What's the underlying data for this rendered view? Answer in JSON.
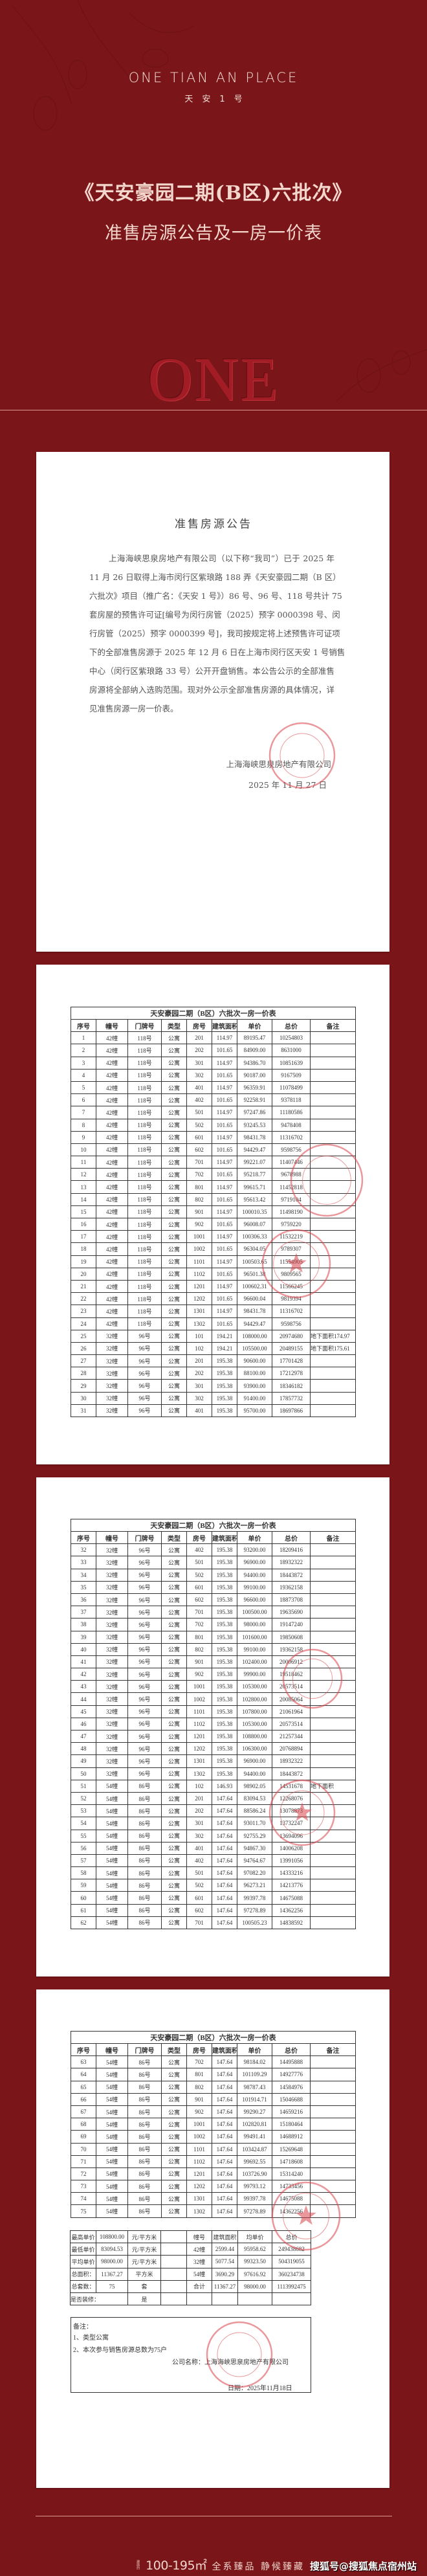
{
  "colors": {
    "background": "#7a1519",
    "heading_text": "#f3d6cc",
    "seal": "#d9434a"
  },
  "header": {
    "brand_en": "ONE TIAN AN PLACE",
    "brand_cn": "天安1号",
    "title_line1": "《天安豪园二期(B区)六批次》",
    "title_line2": "准售房源公告及一房一价表",
    "logo_text": "ONE"
  },
  "announcement": {
    "title": "准售房源公告",
    "lines": [
      "上海海峡思泉房地产有限公司（以下称“我司”）已于 2025 年",
      "11 月 26 日取得上海市闵行区紫琅路 188 弄《天安豪园二期（B 区）",
      "六批次》项目（推广名：《天安 1 号》）86 号、96 号、118 号共计 75",
      "套房屋的预售许可证[编号为闵行房管（2025）预字 0000398 号、闵",
      "行房管（2025）预字 0000399 号]，我司按规定将上述预售许可证项",
      "下的全部准售房源于 2025 年 12 月 6 日在上海市闵行区天安 1 号销售",
      "中心（闵行区紫琅路 33 号）公开开盘销售。本公告公示的全部准售",
      "房源将全部纳入选购范围。现对外公示全部准售房源的具体情况，详",
      "见准售房源一房一价表。"
    ],
    "company": "上海海峡思泉房地产有限公司",
    "date": "2025 年 11 月 27 日"
  },
  "price_table": {
    "title": "天安豪园二期（B区）六批次一房一价表",
    "headers": [
      "序号",
      "幢号",
      "门牌号",
      "类型",
      "房号",
      "建筑面积",
      "单价",
      "总价",
      "备注"
    ],
    "pages": [
      [
        [
          "1",
          "42幢",
          "118号",
          "公寓",
          "201",
          "114.97",
          "89195.47",
          "10254803",
          ""
        ],
        [
          "2",
          "42幢",
          "118号",
          "公寓",
          "202",
          "101.65",
          "84909.00",
          "8631000",
          ""
        ],
        [
          "3",
          "42幢",
          "118号",
          "公寓",
          "301",
          "114.97",
          "94386.70",
          "10851639",
          ""
        ],
        [
          "4",
          "42幢",
          "118号",
          "公寓",
          "302",
          "101.65",
          "90187.00",
          "9167509",
          ""
        ],
        [
          "5",
          "42幢",
          "118号",
          "公寓",
          "401",
          "114.97",
          "96359.91",
          "11078499",
          ""
        ],
        [
          "6",
          "42幢",
          "118号",
          "公寓",
          "402",
          "101.65",
          "92258.91",
          "9378118",
          ""
        ],
        [
          "7",
          "42幢",
          "118号",
          "公寓",
          "501",
          "114.97",
          "97247.86",
          "11180586",
          ""
        ],
        [
          "8",
          "42幢",
          "118号",
          "公寓",
          "502",
          "101.65",
          "93245.53",
          "9478408",
          ""
        ],
        [
          "9",
          "42幢",
          "118号",
          "公寓",
          "601",
          "114.97",
          "98431.78",
          "11316702",
          ""
        ],
        [
          "10",
          "42幢",
          "118号",
          "公寓",
          "602",
          "101.65",
          "94429.47",
          "9598756",
          ""
        ],
        [
          "11",
          "42幢",
          "118号",
          "公寓",
          "701",
          "114.97",
          "99221.07",
          "11407446",
          ""
        ],
        [
          "12",
          "42幢",
          "118号",
          "公寓",
          "702",
          "101.65",
          "95218.77",
          "9678988",
          ""
        ],
        [
          "13",
          "42幢",
          "118号",
          "公寓",
          "801",
          "114.97",
          "99615.71",
          "11452818",
          ""
        ],
        [
          "14",
          "42幢",
          "118号",
          "公寓",
          "802",
          "101.65",
          "95613.42",
          "9719104",
          ""
        ],
        [
          "15",
          "42幢",
          "118号",
          "公寓",
          "901",
          "114.97",
          "100010.35",
          "11498190",
          ""
        ],
        [
          "16",
          "42幢",
          "118号",
          "公寓",
          "902",
          "101.65",
          "96008.07",
          "9759220",
          ""
        ],
        [
          "17",
          "42幢",
          "118号",
          "公寓",
          "1001",
          "114.97",
          "100306.33",
          "11532219",
          ""
        ],
        [
          "18",
          "42幢",
          "118号",
          "公寓",
          "1002",
          "101.65",
          "96304.05",
          "9789307",
          ""
        ],
        [
          "19",
          "42幢",
          "118号",
          "公寓",
          "1101",
          "114.97",
          "100503.65",
          "11554905",
          ""
        ],
        [
          "20",
          "42幢",
          "118号",
          "公寓",
          "1102",
          "101.65",
          "96501.38",
          "9809565",
          ""
        ],
        [
          "21",
          "42幢",
          "118号",
          "公寓",
          "1201",
          "114.97",
          "100602.31",
          "11566245",
          ""
        ],
        [
          "22",
          "42幢",
          "118号",
          "公寓",
          "1202",
          "101.65",
          "96600.04",
          "9819394",
          ""
        ],
        [
          "23",
          "42幢",
          "118号",
          "公寓",
          "1301",
          "114.97",
          "98431.78",
          "11316702",
          ""
        ],
        [
          "24",
          "42幢",
          "118号",
          "公寓",
          "1302",
          "101.65",
          "94429.47",
          "9598756",
          ""
        ],
        [
          "25",
          "32幢",
          "96号",
          "公寓",
          "101",
          "194.21",
          "108000.00",
          "20974680",
          "地下面积174.97"
        ],
        [
          "26",
          "32幢",
          "96号",
          "公寓",
          "102",
          "194.21",
          "105500.00",
          "20489155",
          "地下面积175.61"
        ],
        [
          "27",
          "32幢",
          "96号",
          "公寓",
          "201",
          "195.38",
          "90600.00",
          "17701428",
          ""
        ],
        [
          "28",
          "32幢",
          "96号",
          "公寓",
          "202",
          "195.38",
          "88100.00",
          "17212978",
          ""
        ],
        [
          "29",
          "32幢",
          "96号",
          "公寓",
          "301",
          "195.38",
          "93900.00",
          "18346182",
          ""
        ],
        [
          "30",
          "32幢",
          "96号",
          "公寓",
          "302",
          "195.38",
          "91400.00",
          "17857732",
          ""
        ],
        [
          "31",
          "32幢",
          "96号",
          "公寓",
          "401",
          "195.38",
          "95700.00",
          "18697866",
          ""
        ]
      ],
      [
        [
          "32",
          "32幢",
          "96号",
          "公寓",
          "402",
          "195.38",
          "93200.00",
          "18209416",
          ""
        ],
        [
          "33",
          "32幢",
          "96号",
          "公寓",
          "501",
          "195.38",
          "96900.00",
          "18932322",
          ""
        ],
        [
          "34",
          "32幢",
          "96号",
          "公寓",
          "502",
          "195.38",
          "94400.00",
          "18443872",
          ""
        ],
        [
          "35",
          "32幢",
          "96号",
          "公寓",
          "601",
          "195.38",
          "99100.00",
          "19362158",
          ""
        ],
        [
          "36",
          "32幢",
          "96号",
          "公寓",
          "602",
          "195.38",
          "96600.00",
          "18873708",
          ""
        ],
        [
          "37",
          "32幢",
          "96号",
          "公寓",
          "701",
          "195.38",
          "100500.00",
          "19635690",
          ""
        ],
        [
          "38",
          "32幢",
          "96号",
          "公寓",
          "702",
          "195.38",
          "98000.00",
          "19147240",
          ""
        ],
        [
          "39",
          "32幢",
          "96号",
          "公寓",
          "801",
          "195.38",
          "101600.00",
          "19850608",
          ""
        ],
        [
          "40",
          "32幢",
          "96号",
          "公寓",
          "802",
          "195.38",
          "99100.00",
          "19362158",
          ""
        ],
        [
          "41",
          "32幢",
          "96号",
          "公寓",
          "901",
          "195.38",
          "102400.00",
          "20006912",
          ""
        ],
        [
          "42",
          "32幢",
          "96号",
          "公寓",
          "902",
          "195.38",
          "99900.00",
          "19518462",
          ""
        ],
        [
          "43",
          "32幢",
          "96号",
          "公寓",
          "1001",
          "195.38",
          "105300.00",
          "20573514",
          ""
        ],
        [
          "44",
          "32幢",
          "96号",
          "公寓",
          "1002",
          "195.38",
          "102800.00",
          "20085064",
          ""
        ],
        [
          "45",
          "32幢",
          "96号",
          "公寓",
          "1101",
          "195.38",
          "107800.00",
          "21061964",
          ""
        ],
        [
          "46",
          "32幢",
          "96号",
          "公寓",
          "1102",
          "195.38",
          "105300.00",
          "20573514",
          ""
        ],
        [
          "47",
          "32幢",
          "96号",
          "公寓",
          "1201",
          "195.38",
          "108800.00",
          "21257344",
          ""
        ],
        [
          "48",
          "32幢",
          "96号",
          "公寓",
          "1202",
          "195.38",
          "106300.00",
          "20768894",
          ""
        ],
        [
          "49",
          "32幢",
          "96号",
          "公寓",
          "1301",
          "195.38",
          "96900.00",
          "18932322",
          ""
        ],
        [
          "50",
          "32幢",
          "96号",
          "公寓",
          "1302",
          "195.38",
          "94400.00",
          "18443872",
          ""
        ],
        [
          "51",
          "54幢",
          "86号",
          "公寓",
          "102",
          "146.93",
          "98902.05",
          "14531678",
          "地下面积"
        ],
        [
          "52",
          "54幢",
          "86号",
          "公寓",
          "201",
          "147.64",
          "83094.53",
          "12268076",
          ""
        ],
        [
          "53",
          "54幢",
          "86号",
          "公寓",
          "202",
          "147.64",
          "88586.24",
          "13078873",
          ""
        ],
        [
          "54",
          "54幢",
          "86号",
          "公寓",
          "301",
          "147.64",
          "93011.70",
          "13732247",
          ""
        ],
        [
          "55",
          "54幢",
          "86号",
          "公寓",
          "302",
          "147.64",
          "92755.29",
          "13694096",
          ""
        ],
        [
          "56",
          "54幢",
          "86号",
          "公寓",
          "401",
          "147.64",
          "94867.30",
          "14006208",
          ""
        ],
        [
          "57",
          "54幢",
          "86号",
          "公寓",
          "402",
          "147.64",
          "94764.67",
          "13991056",
          ""
        ],
        [
          "58",
          "54幢",
          "86号",
          "公寓",
          "501",
          "147.64",
          "97082.20",
          "14333216",
          ""
        ],
        [
          "59",
          "54幢",
          "86号",
          "公寓",
          "502",
          "147.64",
          "96273.21",
          "14213776",
          ""
        ],
        [
          "60",
          "54幢",
          "86号",
          "公寓",
          "601",
          "147.64",
          "99397.78",
          "14675088",
          ""
        ],
        [
          "61",
          "54幢",
          "86号",
          "公寓",
          "602",
          "147.64",
          "97278.89",
          "14362256",
          ""
        ],
        [
          "62",
          "54幢",
          "86号",
          "公寓",
          "701",
          "147.64",
          "100505.23",
          "14838592",
          ""
        ]
      ],
      [
        [
          "63",
          "54幢",
          "86号",
          "公寓",
          "702",
          "147.64",
          "98184.02",
          "14495888",
          ""
        ],
        [
          "64",
          "54幢",
          "86号",
          "公寓",
          "801",
          "147.64",
          "101109.29",
          "14927776",
          ""
        ],
        [
          "65",
          "54幢",
          "86号",
          "公寓",
          "802",
          "147.64",
          "98787.43",
          "14584976",
          ""
        ],
        [
          "66",
          "54幢",
          "86号",
          "公寓",
          "901",
          "147.64",
          "101914.71",
          "15046688",
          ""
        ],
        [
          "67",
          "54幢",
          "86号",
          "公寓",
          "902",
          "147.64",
          "99290.27",
          "14659216",
          ""
        ],
        [
          "68",
          "54幢",
          "86号",
          "公寓",
          "1001",
          "147.64",
          "102820.81",
          "15180464",
          ""
        ],
        [
          "69",
          "54幢",
          "86号",
          "公寓",
          "1002",
          "147.64",
          "99491.41",
          "14688912",
          ""
        ],
        [
          "70",
          "54幢",
          "86号",
          "公寓",
          "1101",
          "147.64",
          "103424.87",
          "15269648",
          ""
        ],
        [
          "71",
          "54幢",
          "86号",
          "公寓",
          "1102",
          "147.64",
          "99692.55",
          "14718608",
          ""
        ],
        [
          "72",
          "54幢",
          "86号",
          "公寓",
          "1201",
          "147.64",
          "103726.90",
          "15314240",
          ""
        ],
        [
          "73",
          "54幢",
          "86号",
          "公寓",
          "1202",
          "147.64",
          "99793.12",
          "14733456",
          ""
        ],
        [
          "74",
          "54幢",
          "86号",
          "公寓",
          "1301",
          "147.64",
          "99397.78",
          "14675088",
          ""
        ],
        [
          "75",
          "54幢",
          "86号",
          "公寓",
          "1302",
          "147.64",
          "97278.89",
          "14362256",
          ""
        ]
      ]
    ]
  },
  "summary": {
    "rows": [
      [
        "最高单价",
        "108800.00",
        "元/平方米",
        "",
        "幢号",
        "建筑面积",
        "均单价",
        "总价"
      ],
      [
        "最低单价",
        "83094.53",
        "元/平方米",
        "",
        "42幢",
        "2599.44",
        "95958.62",
        "249438682"
      ],
      [
        "平均单价",
        "98000.00",
        "元/平方米",
        "",
        "32幢",
        "5077.54",
        "99323.50",
        "504319055"
      ],
      [
        "总面积：",
        "11367.27",
        "平方米",
        "",
        "54幢",
        "3690.29",
        "97616.92",
        "360234738"
      ],
      [
        "总套数：",
        "75",
        "套",
        "",
        "合计",
        "11367.27",
        "98000.00",
        "1113992475"
      ],
      [
        "是否装修：",
        "是",
        "",
        "",
        "",
        "",
        ""
      ]
    ]
  },
  "notes": {
    "heading": "备注：",
    "items": [
      "1、类型公寓",
      "2、本次参与销售房源总数为75户"
    ],
    "company": "公司名称：上海海峡思泉房地产有限公司",
    "date": "日期：2025年11月18日"
  },
  "footer": {
    "area_prefix": "建面约",
    "area": "100-195㎡",
    "slogan": "全系臻品 静候臻藏",
    "source": "搜狐号@搜狐焦点宿州站"
  }
}
